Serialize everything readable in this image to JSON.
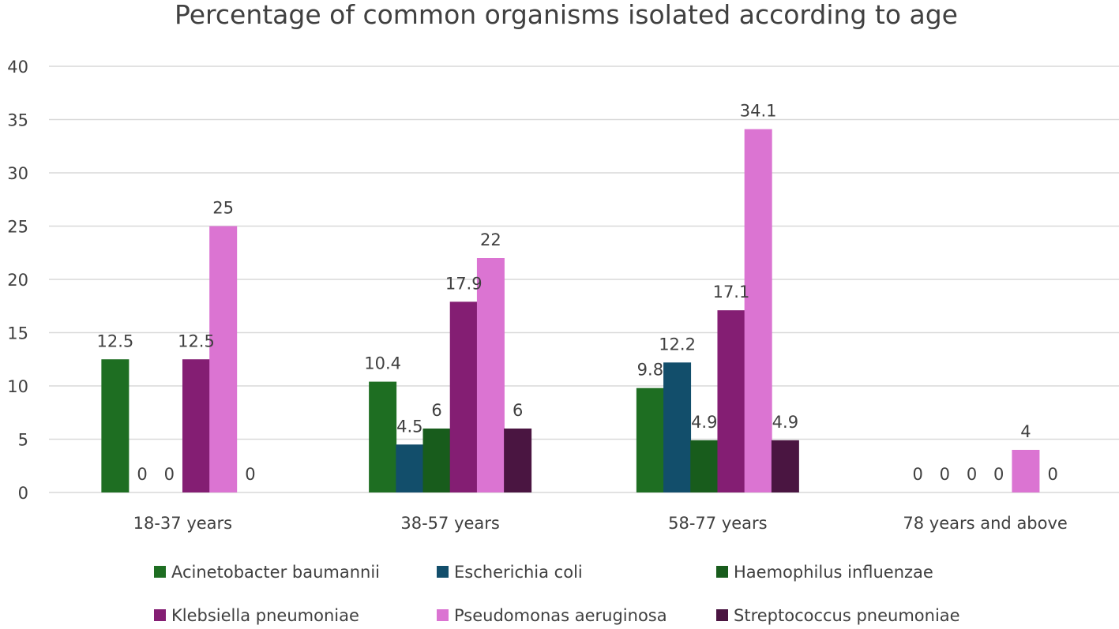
{
  "chart_data": {
    "type": "bar",
    "title": "Percentage of common organisms isolated according to age",
    "xlabel": "",
    "ylabel": "",
    "ylim": [
      0,
      40
    ],
    "yticks": [
      0,
      5,
      10,
      15,
      20,
      25,
      30,
      35,
      40
    ],
    "grid": true,
    "legend_position": "bottom",
    "categories": [
      "18-37 years",
      "38-57 years",
      "58-77 years",
      "78 years and above"
    ],
    "series": [
      {
        "name": "Acinetobacter baumannii",
        "color": "#1e6e22",
        "values": [
          12.5,
          10.4,
          9.8,
          0
        ]
      },
      {
        "name": "Escherichia coli",
        "color": "#124e6b",
        "values": [
          0,
          4.5,
          12.2,
          0
        ]
      },
      {
        "name": "Haemophilus influenzae",
        "color": "#185c1c",
        "values": [
          0,
          6,
          4.9,
          0
        ]
      },
      {
        "name": "Klebsiella pneumoniae",
        "color": "#841e73",
        "values": [
          12.5,
          17.9,
          17.1,
          0
        ]
      },
      {
        "name": "Pseudomonas aeruginosa",
        "color": "#db74d2",
        "values": [
          25,
          22,
          34.1,
          4
        ]
      },
      {
        "name": "Streptococcus pneumoniae",
        "color": "#4a1541",
        "values": [
          0,
          6,
          4.9,
          0
        ]
      }
    ]
  }
}
